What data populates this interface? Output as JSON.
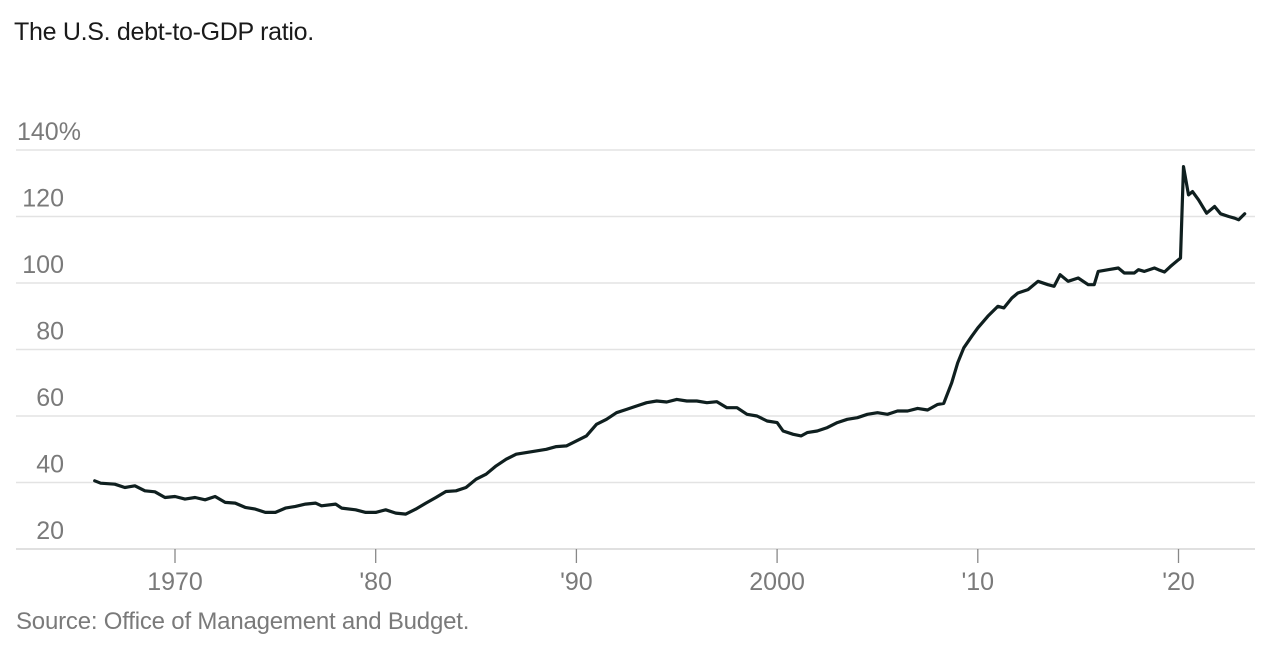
{
  "title": "The U.S. debt-to-GDP ratio.",
  "source": "Source: Office of Management and Budget.",
  "chart_data": {
    "type": "line",
    "title": "The U.S. debt-to-GDP ratio.",
    "xlabel": "",
    "ylabel": "",
    "ylim": [
      20,
      140
    ],
    "xlim": [
      1966,
      2023.5
    ],
    "grid": true,
    "yticks": [
      {
        "value": 140,
        "label": "140%"
      },
      {
        "value": 120,
        "label": "120"
      },
      {
        "value": 100,
        "label": "100"
      },
      {
        "value": 80,
        "label": "80"
      },
      {
        "value": 60,
        "label": "60"
      },
      {
        "value": 40,
        "label": "40"
      },
      {
        "value": 20,
        "label": "20"
      }
    ],
    "xticks": [
      {
        "value": 1970,
        "label": "1970"
      },
      {
        "value": 1980,
        "label": "'80"
      },
      {
        "value": 1990,
        "label": "'90"
      },
      {
        "value": 2000,
        "label": "2000"
      },
      {
        "value": 2010,
        "label": "'10"
      },
      {
        "value": 2020,
        "label": "'20"
      }
    ],
    "line_color": "#0f1f1f",
    "x": [
      1966,
      1966.3,
      1967,
      1967.5,
      1968,
      1968.5,
      1969,
      1969.5,
      1970,
      1970.5,
      1971,
      1971.5,
      1972,
      1972.5,
      1973,
      1973.5,
      1974,
      1974.5,
      1975,
      1975.5,
      1976,
      1976.5,
      1977,
      1977.3,
      1978,
      1978.3,
      1979,
      1979.5,
      1980,
      1980.5,
      1981,
      1981.5,
      1982,
      1982.5,
      1983,
      1983.5,
      1984,
      1984.5,
      1985,
      1985.5,
      1986,
      1986.5,
      1987,
      1988,
      1988.5,
      1989,
      1989.5,
      1990,
      1990.5,
      1991,
      1991.5,
      1992,
      1992.5,
      1993,
      1993.5,
      1994,
      1994.5,
      1995,
      1995.5,
      1996,
      1996.5,
      1997,
      1997.5,
      1998,
      1998.5,
      1999,
      1999.5,
      2000,
      2000.3,
      2000.8,
      2001.2,
      2001.5,
      2002,
      2002.5,
      2003,
      2003.5,
      2004,
      2004.5,
      2005,
      2005.5,
      2006,
      2006.5,
      2007,
      2007.5,
      2008,
      2008.3,
      2008.7,
      2009,
      2009.3,
      2009.7,
      2010,
      2010.5,
      2011,
      2011.3,
      2011.7,
      2012,
      2012.5,
      2013,
      2013.5,
      2013.8,
      2014.1,
      2014.5,
      2015,
      2015.5,
      2015.8,
      2016,
      2016.5,
      2017,
      2017.3,
      2017.8,
      2018,
      2018.3,
      2018.8,
      2019,
      2019.3,
      2019.6,
      2020,
      2020.1,
      2020.25,
      2020.5,
      2020.7,
      2021,
      2021.4,
      2021.8,
      2022.1,
      2022.5,
      2022.8,
      2023,
      2023.3
    ],
    "y": [
      40.5,
      39.8,
      39.5,
      38.5,
      39,
      37.5,
      37.2,
      35.5,
      35.8,
      35,
      35.5,
      34.8,
      35.8,
      34,
      33.8,
      32.5,
      32,
      31,
      31,
      32.3,
      32.8,
      33.5,
      33.8,
      33,
      33.5,
      32.3,
      31.8,
      31,
      31,
      31.8,
      30.8,
      30.5,
      32,
      33.8,
      35.5,
      37.3,
      37.5,
      38.5,
      41,
      42.5,
      45,
      47,
      48.5,
      49.5,
      50,
      50.8,
      51,
      52.5,
      54,
      57.5,
      59,
      61,
      62,
      63,
      64,
      64.5,
      64.2,
      65,
      64.5,
      64.5,
      64,
      64.3,
      62.5,
      62.5,
      60.5,
      60,
      58.5,
      58,
      55.5,
      54.5,
      54,
      55,
      55.5,
      56.5,
      58,
      59,
      59.5,
      60.5,
      61,
      60.5,
      61.5,
      61.5,
      62.3,
      61.8,
      63.5,
      63.8,
      70,
      76,
      80.5,
      84,
      86.5,
      90,
      93,
      92.5,
      95.5,
      97,
      98,
      100.5,
      99.5,
      99,
      102.5,
      100.5,
      101.5,
      99.5,
      99.5,
      103.5,
      104,
      104.5,
      103,
      103,
      104,
      103.5,
      104.5,
      104,
      103.3,
      105,
      107,
      107.5,
      135,
      126.5,
      127.5,
      125,
      121,
      123,
      120.8,
      120,
      119.5,
      119,
      120.8
    ]
  }
}
